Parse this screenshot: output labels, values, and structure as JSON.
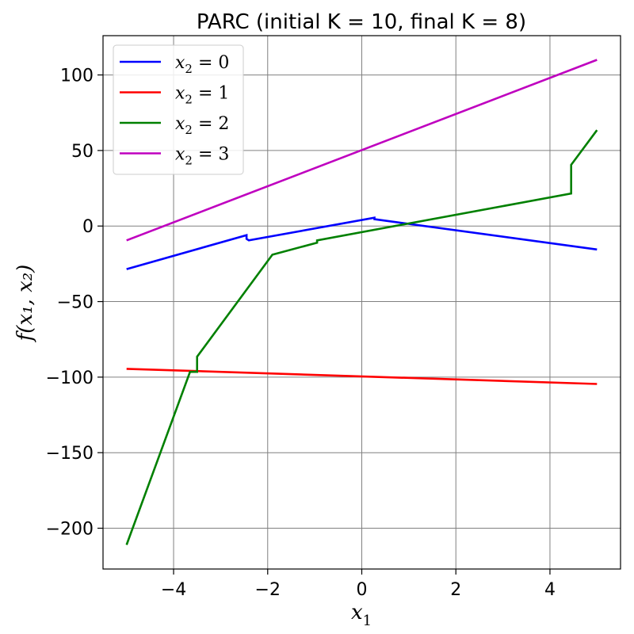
{
  "chart_data": {
    "type": "line",
    "title": "PARC (initial K = 10, final K = 8)",
    "xlabel": "x",
    "xlabel_sub": "1",
    "ylabel": "f(x₁, x₂)",
    "xlim": [
      -5.5,
      5.5
    ],
    "ylim": [
      -227,
      126
    ],
    "xticks": [
      -4,
      -2,
      0,
      2,
      4
    ],
    "yticks": [
      -200,
      -150,
      -100,
      -50,
      0,
      50,
      100
    ],
    "xtick_labels": [
      "−4",
      "−2",
      "0",
      "2",
      "4"
    ],
    "ytick_labels": [
      "−200",
      "−150",
      "−100",
      "−50",
      "0",
      "50",
      "100"
    ],
    "grid": true,
    "legend_position": "top-left",
    "series": [
      {
        "name": "x₂ = 0",
        "legend_sub": "2",
        "legend_value": "0",
        "color": "#0000ff",
        "points": [
          [
            -5,
            -28.5
          ],
          [
            -2.45,
            -6
          ],
          [
            -2.45,
            -8.5
          ],
          [
            -2.4,
            -9.5
          ],
          [
            0.27,
            5.5
          ],
          [
            0.27,
            4.5
          ],
          [
            5,
            -15.5
          ]
        ]
      },
      {
        "name": "x₂ = 1",
        "legend_sub": "2",
        "legend_value": "1",
        "color": "#ff0000",
        "points": [
          [
            -5,
            -94.5
          ],
          [
            5,
            -104.5
          ]
        ]
      },
      {
        "name": "x₂ = 2",
        "legend_sub": "2",
        "legend_value": "2",
        "color": "#008000",
        "points": [
          [
            -5,
            -211
          ],
          [
            -3.65,
            -96.5
          ],
          [
            -3.5,
            -96.5
          ],
          [
            -3.5,
            -86.5
          ],
          [
            -1.9,
            -19
          ],
          [
            -0.95,
            -11
          ],
          [
            -0.95,
            -9.5
          ],
          [
            4.45,
            21.5
          ],
          [
            4.45,
            40.5
          ],
          [
            5,
            63.5
          ]
        ]
      },
      {
        "name": "x₂ = 3",
        "legend_sub": "2",
        "legend_value": "3",
        "color": "#bf00bf",
        "points": [
          [
            -5,
            -9.5
          ],
          [
            5,
            110
          ]
        ]
      }
    ]
  }
}
